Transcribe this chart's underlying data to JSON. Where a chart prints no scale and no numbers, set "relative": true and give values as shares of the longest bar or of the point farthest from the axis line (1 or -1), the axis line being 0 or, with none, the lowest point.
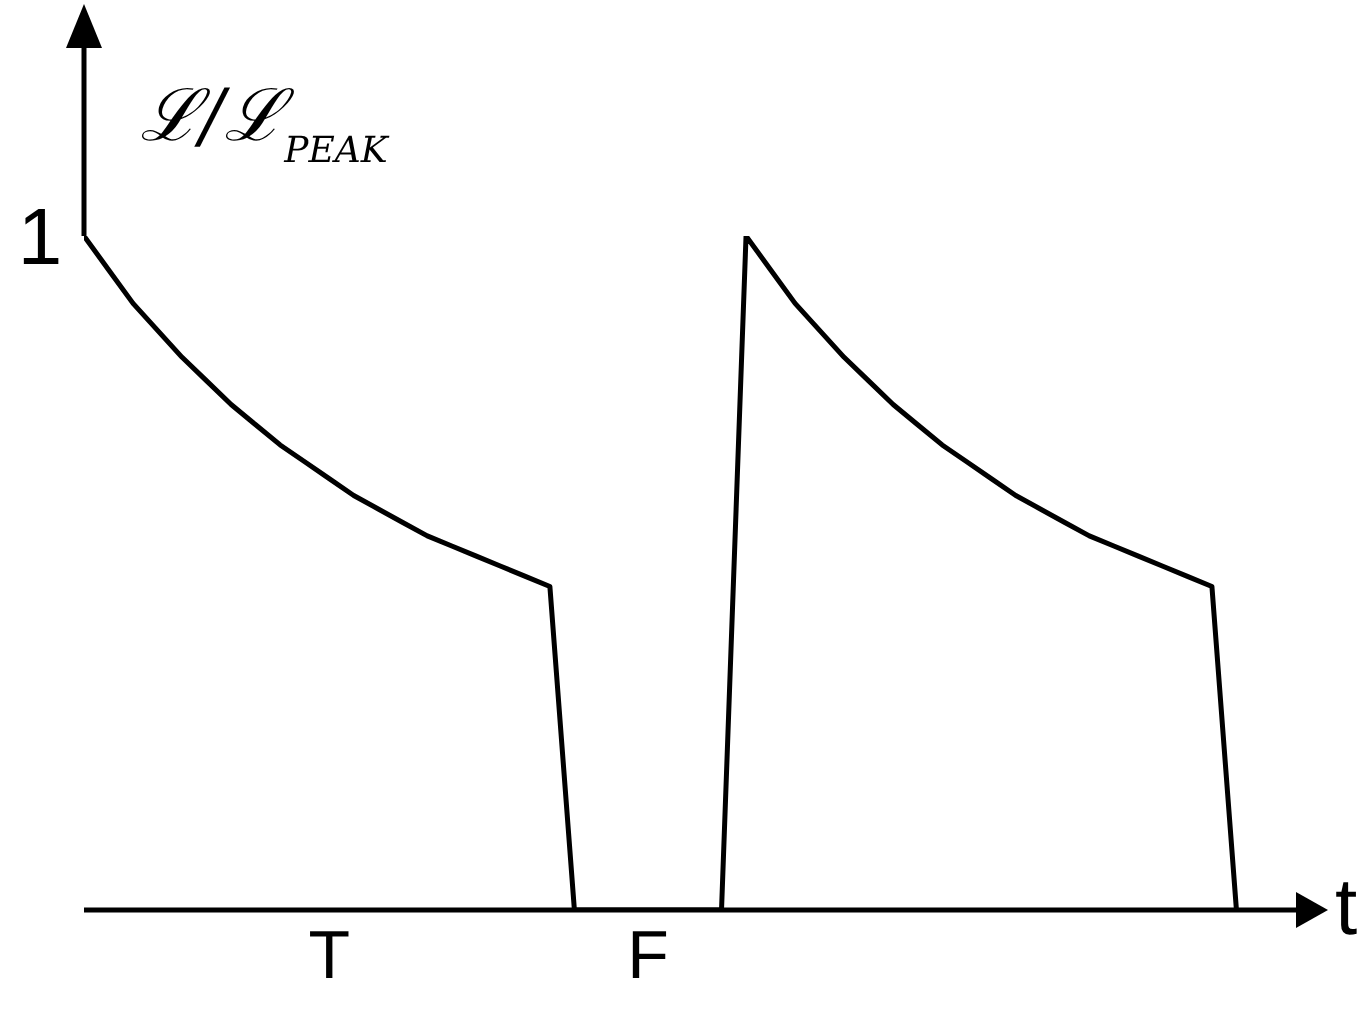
{
  "chart_data": {
    "type": "line",
    "relative": true,
    "ylabel": "ℒ/ℒ$_{PEAK}$",
    "xlabel": "t",
    "categories": [
      null,
      null,
      null,
      null,
      null,
      null,
      null,
      null,
      null,
      null,
      "T",
      null,
      null,
      null,
      null,
      null,
      null,
      null,
      null,
      null,
      null,
      null,
      null,
      "F",
      null,
      null,
      null,
      null,
      null,
      null,
      null,
      null,
      null,
      null,
      null,
      null,
      null,
      null,
      null,
      null,
      null,
      null,
      null,
      null,
      null,
      null,
      null,
      null,
      null,
      null,
      null
    ],
    "series": [
      {
        "color": "#000000",
        "values": [
          1,
          0.95,
          0.9,
          0.86,
          0.82,
          0.785,
          0.75,
          0.72,
          0.69,
          0.665,
          0.64,
          0.615,
          0.595,
          0.575,
          0.555,
          0.54,
          0.525,
          0.51,
          0.495,
          0.48,
          0,
          0,
          0,
          0,
          0,
          0,
          0,
          1,
          0.95,
          0.9,
          0.86,
          0.82,
          0.785,
          0.75,
          0.72,
          0.69,
          0.665,
          0.64,
          0.615,
          0.595,
          0.575,
          0.555,
          0.54,
          0.525,
          0.51,
          0.495,
          0.48,
          0,
          null,
          null,
          null
        ]
      }
    ],
    "annotations": [
      "1"
    ],
    "grid": false,
    "marker": "none",
    "line_style": "solid"
  }
}
